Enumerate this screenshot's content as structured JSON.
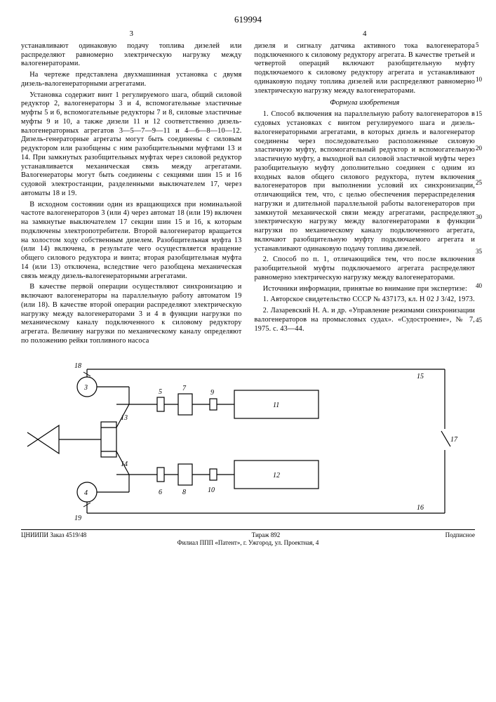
{
  "patent_number": "619994",
  "page_left_num": "3",
  "page_right_num": "4",
  "line_numbers": [
    "5",
    "10",
    "15",
    "20",
    "25",
    "30",
    "35",
    "40",
    "45"
  ],
  "left_column": [
    "устанавливают одинаковую подачу топлива дизелей или распределяют равномерно электрическую нагрузку между валогенераторами.",
    "На чертеже представлена двухмашинная установка с двумя дизель-валогенераторными агрегатами.",
    "Установка содержит винт 1 регулируемого шага, общий силовой редуктор 2, валогенераторы 3 и 4, вспомогательные эластичные муфты 5 и 6, вспомогательные редукторы 7 и 8, силовые эластичные муфты 9 и 10, а также дизели 11 и 12 соответственно дизель-валогенераторных агрегатов 3—5—7—9—11 и 4—6—8—10—12. Дизель-генераторные агрегаты могут быть соединены с силовым редуктором или разобщены с ним разобщительными муфтами 13 и 14. При замкнутых разобщительных муфтах через силовой редуктор устанавливается механическая связь между агрегатами. Валогенераторы могут быть соединены с секциями шин 15 и 16 судовой электростанции, разделенными выключателем 17, через автоматы 18 и 19.",
    "В исходном состоянии один из вращающихся при номинальной частоте валогенераторов 3 (или 4) через автомат 18 (или 19) включен на замкнутые выключателем 17 секции шин 15 и 16, к которым подключены электропотребители. Второй валогенератор вращается на холостом ходу собственным дизелем. Разобщительная муфта 13 (или 14) включена, в результате чего осуществляется вращение общего силового редуктора и винта; вторая разобщительная муфта 14 (или 13) отключена, вследствие чего разобщена механическая связь между дизель-валогенераторными агрегатами.",
    "В качестве первой операции осуществляют синхронизацию и включают валогенераторы на параллельную работу автоматом 19 (или 18). В качестве второй операции распределяют электрическую нагрузку между валогенераторами 3 и 4 в функции нагрузки по механическому каналу подключенного к силовому редуктору агрегата. Величину нагрузки по механическому каналу определяют по положению рейки топливного насоса"
  ],
  "right_column_intro": [
    "дизеля и сигналу датчика активного тока валогенератора подключенного к силовому редуктору агрегата. В качестве третьей и четвертой операций включают разобщительную муфту подключаемого к силовому редуктору агрегата и устанавливают одинаковую подачу топлива дизелей или распределяют равномерно электрическую нагрузку между валогенераторами."
  ],
  "formula_title": "Формула изобретения",
  "right_column_claims": [
    "1. Способ включения на параллельную работу валогенераторов в судовых установках с винтом регулируемого шага и дизель-валогенераторными агрегатами, в которых дизель и валогенератор соединены через последовательно расположенные силовую эластичную муфту, вспомогательный редуктор и вспомогательную эластичную муфту, а выходной вал силовой эластичной муфты через разобщительную муфту дополнительно соединен с одним из входных валов общего силового редуктора, путем включения валогенераторов при выполнении условий их синхронизации, отличающийся тем, что, с целью обеспечения перераспределения нагрузки и длительной параллельной работы валогенераторов при замкнутой механической связи между агрегатами, распределяют электрическую нагрузку между валогенераторами в функции нагрузки по механическому каналу подключенного агрегата, включают разобщительную муфту подключаемого агрегата и устанавливают одинаковую подачу топлива дизелей.",
    "2. Способ по п. 1, отличающийся тем, что после включения разобщительной муфты подключаемого агрегата распределяют равномерно электрическую нагрузку между валогенераторами.",
    "Источники информации, принятые во внимание при экспертизе:",
    "1. Авторское свидетельство СССР № 437173, кл. H 02 J 3/42, 1973.",
    "2. Лазаревский Н. А. и др. «Управление режимами синхронизации валогенераторов на промысловых судах». «Судостроение», № 7, 1975. с. 43—44."
  ],
  "diagram": {
    "labels": {
      "1": "1",
      "2": "",
      "3": "3",
      "4": "4",
      "5": "5",
      "6": "6",
      "7": "7",
      "8": "8",
      "9": "9",
      "10": "10",
      "11": "11",
      "12": "12",
      "13": "13",
      "14": "14",
      "15": "15",
      "16": "16",
      "17": "17",
      "18": "18",
      "19": "19"
    },
    "stroke": "#000000",
    "fill": "#ffffff",
    "line_width": 1.2
  },
  "footer": {
    "left": "ЦНИИПИ  Заказ 4519/48",
    "center": "Тираж 892",
    "right": "Подписное",
    "line2": "Филиал ППП «Патент», г. Ужгород, ул. Проектная, 4"
  }
}
